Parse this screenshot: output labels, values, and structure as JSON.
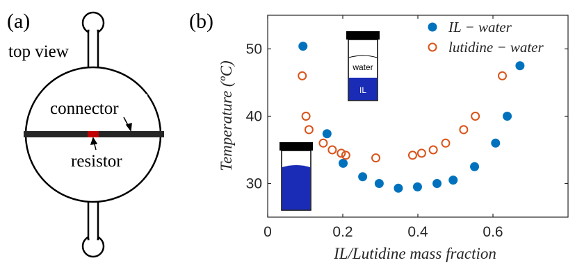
{
  "panel_a": {
    "label": "(a)",
    "top_view_label": "top view",
    "connector_label": "connector",
    "resistor_label": "resistor"
  },
  "panel_b": {
    "label": "(b)",
    "vial_top_label": "water",
    "vial_bottom_label": "IL"
  },
  "chart_data": {
    "type": "scatter",
    "xlabel": "IL/Lutidine mass fraction",
    "ylabel": "Temperature (ºC)",
    "xlim": [
      0,
      0.8
    ],
    "ylim": [
      25,
      55
    ],
    "xticks": [
      0,
      0.2,
      0.4,
      0.6
    ],
    "xtick_labels": [
      "0",
      "0.2",
      "0.4",
      "0.6"
    ],
    "yticks": [
      30,
      40,
      50
    ],
    "ytick_labels": [
      "30",
      "40",
      "50"
    ],
    "grid": false,
    "legend_position": "top-right",
    "series": [
      {
        "name": "IL − water",
        "marker": "filled-circle",
        "color": "#0072BD",
        "x": [
          0.094,
          0.158,
          0.201,
          0.253,
          0.297,
          0.348,
          0.399,
          0.451,
          0.494,
          0.551,
          0.607,
          0.638,
          0.672
        ],
        "y": [
          50.4,
          37.4,
          33.0,
          31.0,
          30.0,
          29.3,
          29.5,
          30.0,
          30.5,
          32.5,
          36.0,
          40.0,
          47.5
        ]
      },
      {
        "name": "lutidine − water",
        "marker": "open-circle",
        "color": "#D95319",
        "x": [
          0.092,
          0.102,
          0.11,
          0.148,
          0.172,
          0.196,
          0.208,
          0.288,
          0.386,
          0.41,
          0.441,
          0.474,
          0.522,
          0.553,
          0.625
        ],
        "y": [
          46.0,
          40.0,
          38.0,
          36.0,
          35.0,
          34.5,
          34.2,
          33.8,
          34.2,
          34.5,
          35.0,
          36.0,
          38.0,
          40.0,
          46.0
        ]
      }
    ]
  }
}
